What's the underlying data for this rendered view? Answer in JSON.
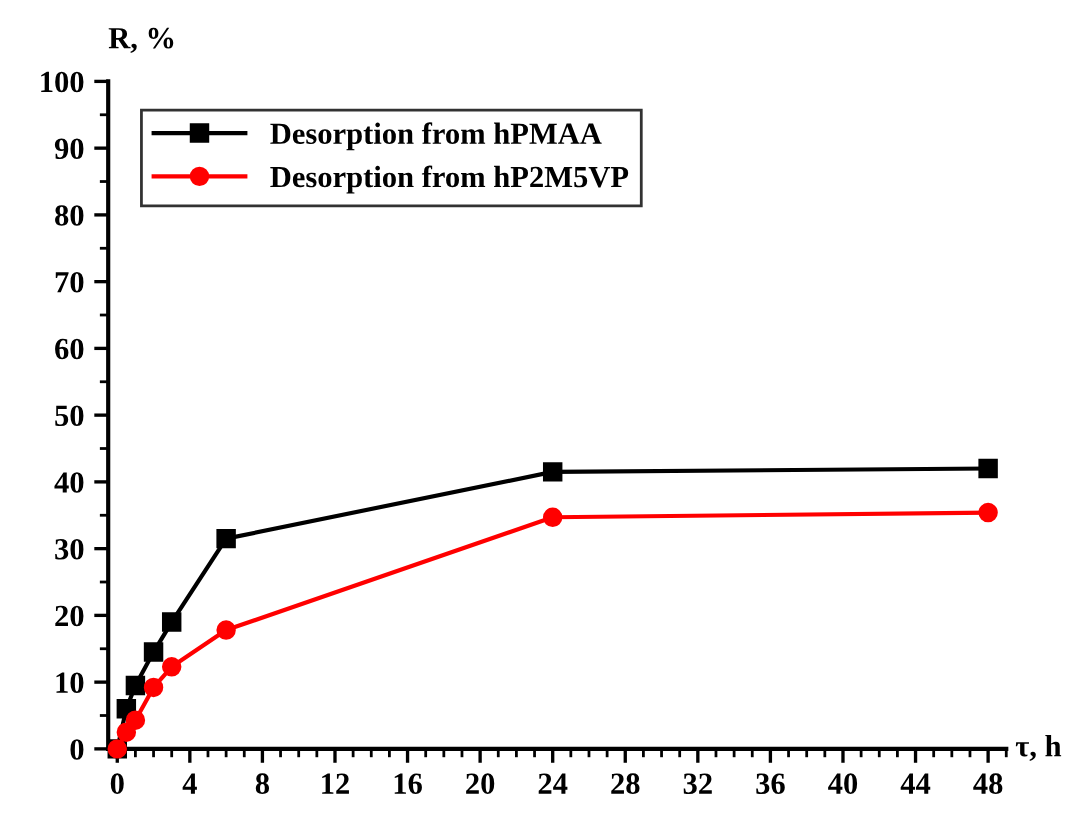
{
  "chart_data": {
    "type": "line",
    "xlabel": "τ, h",
    "ylabel": "R, %",
    "xlim": [
      -0.5,
      49
    ],
    "xticks": [
      0,
      4,
      8,
      12,
      16,
      20,
      24,
      28,
      32,
      36,
      40,
      44,
      48
    ],
    "ylim": [
      0,
      100
    ],
    "yticks": [
      0,
      10,
      20,
      30,
      40,
      50,
      60,
      70,
      80,
      90,
      100
    ],
    "grid": false,
    "legend": "top left",
    "line_style": "solid",
    "series": [
      {
        "name": "Desorption from hPMAA",
        "color": "#000000",
        "marker": "square",
        "x": [
          0,
          0.5,
          1,
          2,
          3,
          6,
          24,
          48
        ],
        "values": [
          0,
          6,
          9.5,
          14.5,
          19,
          31.5,
          41.5,
          42
        ]
      },
      {
        "name": "Desorption from hP2M5VP",
        "color": "#ff0000",
        "marker": "circle",
        "x": [
          0,
          0.5,
          1,
          2,
          3,
          6,
          24,
          48
        ],
        "values": [
          0,
          2.5,
          4.3,
          9.2,
          12.3,
          17.8,
          34.7,
          35.4
        ]
      }
    ]
  }
}
